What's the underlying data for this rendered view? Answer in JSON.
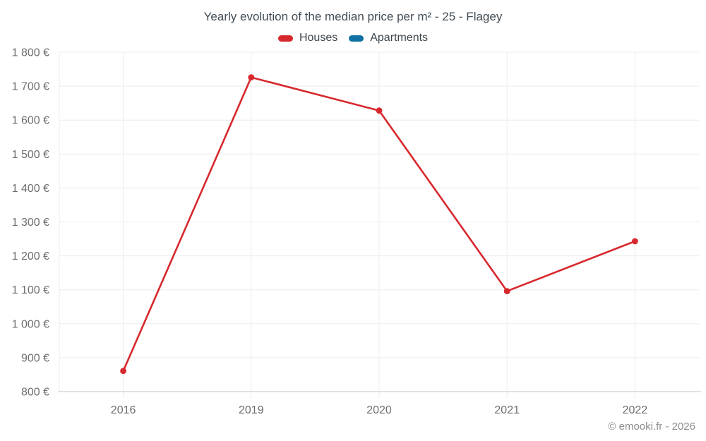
{
  "title": "Yearly evolution of the median price per m² - 25 - Flagey",
  "legend": {
    "items": [
      {
        "label": "Houses",
        "color": "#d7282d"
      },
      {
        "label": "Apartments",
        "color": "#1072a3"
      }
    ]
  },
  "footer": "© emooki.fr - 2026",
  "colors": {
    "grid": "#ececec",
    "axis_line": "#c6c6c6",
    "tick_label": "#6e6e6e"
  },
  "chart_data": {
    "type": "line",
    "title": "Yearly evolution of the median price per m² - 25 - Flagey",
    "categories": [
      "2016",
      "2019",
      "2020",
      "2021",
      "2022"
    ],
    "series": [
      {
        "name": "Houses",
        "color": "#d7282d",
        "values": [
          861,
          1726,
          1628,
          1096,
          1243
        ]
      },
      {
        "name": "Apartments",
        "color": "#1072a3",
        "values": []
      }
    ],
    "xlabel": "",
    "ylabel": "",
    "ylim": [
      800,
      1800
    ],
    "ytick_step": 100,
    "ytick_suffix": " €",
    "grid": true,
    "legend_position": "top",
    "marker": "circle"
  }
}
